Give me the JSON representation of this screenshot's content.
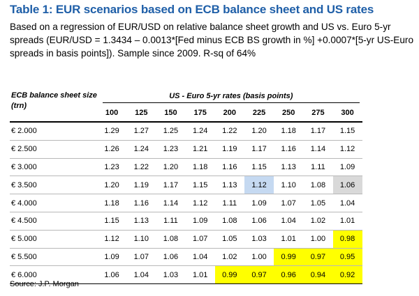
{
  "title": "Table 1: EUR scenarios based on ECB balance sheet and US rates",
  "subtitle": "Based on a regression of EUR/USD on relative balance sheet growth and US vs. Euro 5-yr spreads (EUR/USD = 1.3434 – 0.0013*[Fed minus ECB BS growth in %] +0.0007*[5-yr US-Euro spreads in basis points]). Sample since 2009. R-sq of 64%",
  "table": {
    "row_header": "ECB balance sheet size (trn)",
    "col_header": "US - Euro 5-yr rates (basis points)",
    "columns": [
      "100",
      "125",
      "150",
      "175",
      "200",
      "225",
      "250",
      "275",
      "300"
    ],
    "rows": [
      {
        "label": "€ 2.000",
        "values": [
          "1.29",
          "1.27",
          "1.25",
          "1.24",
          "1.22",
          "1.20",
          "1.18",
          "1.17",
          "1.15"
        ]
      },
      {
        "label": "€ 2.500",
        "values": [
          "1.26",
          "1.24",
          "1.23",
          "1.21",
          "1.19",
          "1.17",
          "1.16",
          "1.14",
          "1.12"
        ]
      },
      {
        "label": "€ 3.000",
        "values": [
          "1.23",
          "1.22",
          "1.20",
          "1.18",
          "1.16",
          "1.15",
          "1.13",
          "1.11",
          "1.09"
        ]
      },
      {
        "label": "€ 3.500",
        "values": [
          "1.20",
          "1.19",
          "1.17",
          "1.15",
          "1.13",
          "1.12",
          "1.10",
          "1.08",
          "1.06"
        ]
      },
      {
        "label": "€ 4.000",
        "values": [
          "1.18",
          "1.16",
          "1.14",
          "1.12",
          "1.11",
          "1.09",
          "1.07",
          "1.05",
          "1.04"
        ]
      },
      {
        "label": "€ 4.500",
        "values": [
          "1.15",
          "1.13",
          "1.11",
          "1.09",
          "1.08",
          "1.06",
          "1.04",
          "1.02",
          "1.01"
        ]
      },
      {
        "label": "€ 5.000",
        "values": [
          "1.12",
          "1.10",
          "1.08",
          "1.07",
          "1.05",
          "1.03",
          "1.01",
          "1.00",
          "0.98"
        ]
      },
      {
        "label": "€ 5.500",
        "values": [
          "1.09",
          "1.07",
          "1.06",
          "1.04",
          "1.02",
          "1.00",
          "0.99",
          "0.97",
          "0.95"
        ]
      },
      {
        "label": "€ 6.000",
        "values": [
          "1.06",
          "1.04",
          "1.03",
          "1.01",
          "0.99",
          "0.97",
          "0.96",
          "0.94",
          "0.92"
        ]
      }
    ],
    "highlights": [
      {
        "row": 3,
        "col": 5,
        "color": "blue"
      },
      {
        "row": 3,
        "col": 8,
        "color": "grey"
      },
      {
        "row": 6,
        "col": 8,
        "color": "yellow"
      },
      {
        "row": 7,
        "col": 6,
        "color": "yellow"
      },
      {
        "row": 7,
        "col": 7,
        "color": "yellow"
      },
      {
        "row": 7,
        "col": 8,
        "color": "yellow"
      },
      {
        "row": 8,
        "col": 4,
        "color": "yellow"
      },
      {
        "row": 8,
        "col": 5,
        "color": "yellow"
      },
      {
        "row": 8,
        "col": 6,
        "color": "yellow"
      },
      {
        "row": 8,
        "col": 7,
        "color": "yellow"
      },
      {
        "row": 8,
        "col": 8,
        "color": "yellow"
      }
    ],
    "colors": {
      "yellow": "#ffff00",
      "blue": "#c5d9f1",
      "grey": "#d9d9d9"
    }
  },
  "source": "Source: J.P. Morgan",
  "colors": {
    "title": "#1f5fa8"
  }
}
